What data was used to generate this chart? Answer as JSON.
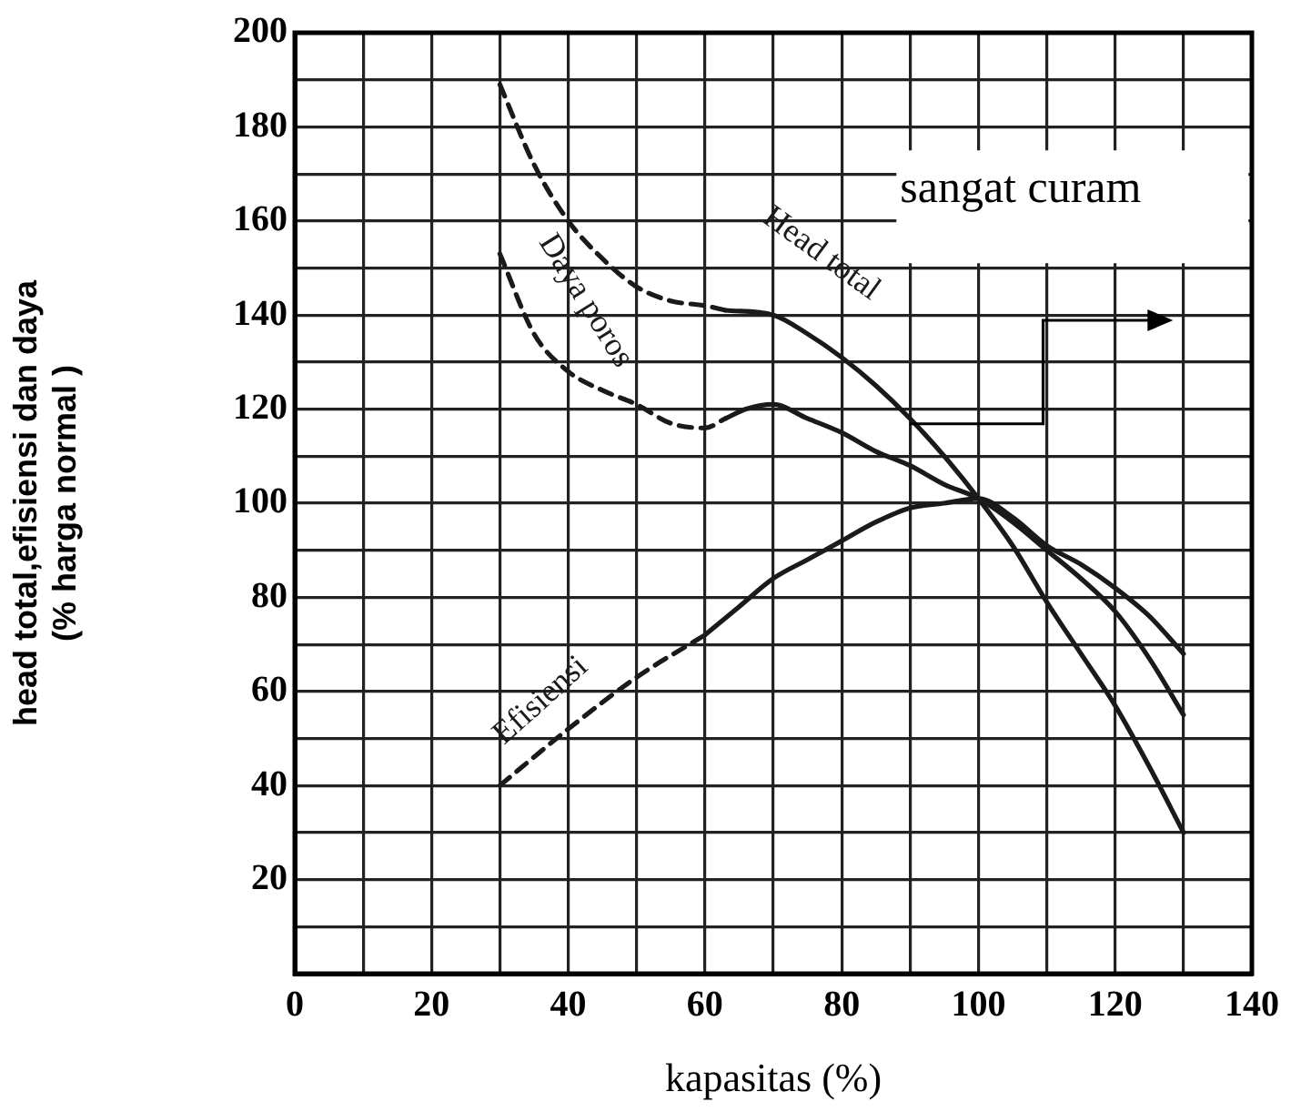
{
  "chart_data": {
    "type": "line",
    "ylabel": "head total,efisiensi dan daya\n(% harga normal )",
    "xlabel": "kapasitas (%)",
    "annotations": [
      "sangat curam"
    ],
    "xlim": [
      0,
      140
    ],
    "ylim": [
      0,
      200
    ],
    "xticks": [
      0,
      {
        "value": 10,
        "label": null
      },
      20,
      {
        "value": 30,
        "label": null
      },
      40,
      {
        "value": 50,
        "label": null
      },
      60,
      {
        "value": 70,
        "label": null
      },
      80,
      {
        "value": 90,
        "label": null
      },
      100,
      {
        "value": 110,
        "label": null
      },
      120,
      {
        "value": 130,
        "label": null
      },
      140
    ],
    "yticks": [
      {
        "value": 0,
        "label": null
      },
      {
        "value": 10,
        "label": null
      },
      20,
      {
        "value": 30,
        "label": null
      },
      40,
      {
        "value": 50,
        "label": null
      },
      60,
      {
        "value": 70,
        "label": null
      },
      80,
      {
        "value": 90,
        "label": null
      },
      100,
      {
        "value": 110,
        "label": null
      },
      120,
      {
        "value": 130,
        "label": null
      },
      140,
      {
        "value": 150,
        "label": null
      },
      160,
      {
        "value": 170,
        "label": null
      },
      180,
      {
        "value": 190,
        "label": null
      },
      200
    ],
    "grid": true,
    "legend": false,
    "marker": "none",
    "series": [
      {
        "color": "#1a1a1a",
        "line_style": "dashed",
        "x": [
          30,
          35,
          40,
          45,
          50,
          55,
          60,
          63
        ],
        "values": [
          189,
          172,
          160,
          152,
          146,
          143,
          142,
          141
        ]
      },
      {
        "name": "Head total",
        "color": "#1a1a1a",
        "line_style": "solid",
        "x": [
          63,
          70,
          75,
          80,
          85,
          90,
          95,
          100,
          105,
          110,
          115,
          120,
          125,
          130
        ],
        "values": [
          141,
          140,
          136,
          131,
          125,
          118,
          110,
          101,
          91,
          79,
          68,
          57,
          44,
          30
        ]
      },
      {
        "name": "Daya poros",
        "color": "#1a1a1a",
        "line_style": "dashed",
        "x": [
          30,
          35,
          40,
          45,
          50,
          55,
          60,
          63
        ],
        "values": [
          153,
          136,
          128,
          124,
          121,
          117,
          116,
          118
        ]
      },
      {
        "color": "#1a1a1a",
        "line_style": "solid",
        "x": [
          63,
          66,
          70,
          75,
          80,
          85,
          90,
          95,
          100,
          105,
          110,
          115,
          120,
          125,
          130
        ],
        "values": [
          118,
          120,
          121,
          118,
          115,
          111,
          108,
          104,
          101,
          96,
          90,
          84,
          77,
          67,
          55
        ]
      },
      {
        "name": "Efisiensi",
        "color": "#1a1a1a",
        "line_style": "dashed",
        "x": [
          30,
          40,
          50,
          60
        ],
        "values": [
          40,
          52,
          63,
          72
        ]
      },
      {
        "color": "#1a1a1a",
        "line_style": "solid",
        "x": [
          60,
          65,
          70,
          75,
          80,
          85,
          90,
          95,
          100,
          105,
          110,
          115,
          120,
          125,
          130
        ],
        "values": [
          72,
          78,
          84,
          88,
          92,
          96,
          99,
          100,
          101,
          97,
          91,
          87,
          82,
          76,
          68
        ]
      }
    ]
  }
}
